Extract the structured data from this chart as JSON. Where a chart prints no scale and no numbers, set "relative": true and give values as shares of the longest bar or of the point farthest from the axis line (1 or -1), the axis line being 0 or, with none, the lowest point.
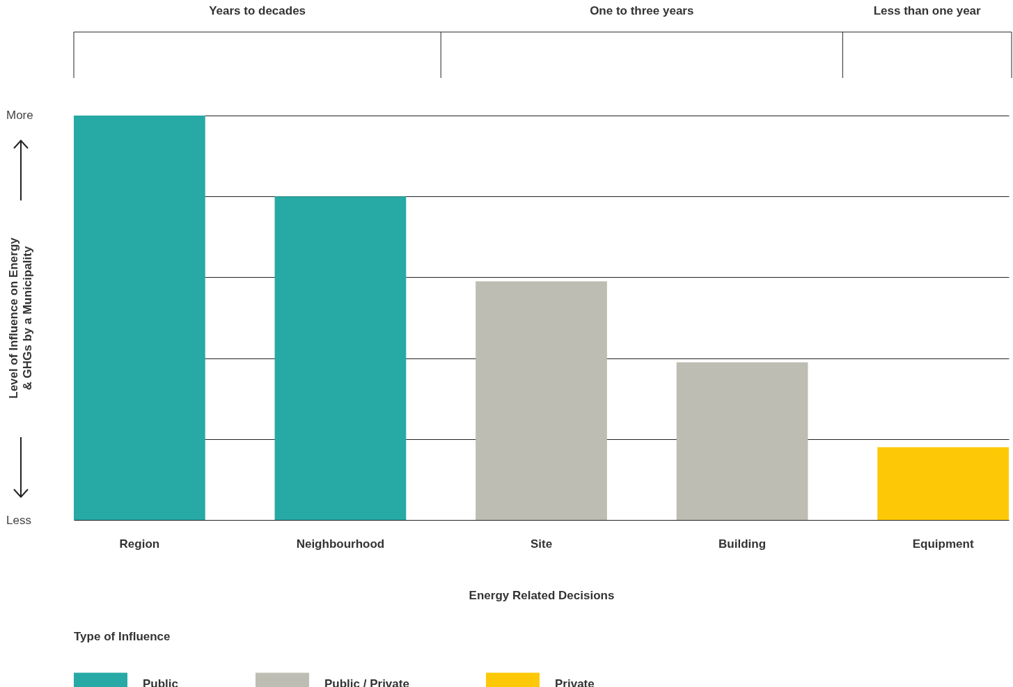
{
  "chart_data": {
    "type": "bar",
    "relative": true,
    "xlabel": "Energy Related Decisions",
    "ylabel": "Level of Influence on Energy\n& GHGs by a Municipality",
    "legend_title": "Type of Influence",
    "legend": "bottom left",
    "grid": "y",
    "categories": [
      "Region",
      "Neighbourhood",
      "Site",
      "Building",
      "Equipment"
    ],
    "series": [
      {
        "name": "Public",
        "color": "#27a9a5",
        "values": [
          1,
          0.8,
          null,
          null,
          null
        ]
      },
      {
        "name": "Public / Private",
        "color": "#bdbdb3",
        "values": [
          null,
          null,
          0.59,
          0.39,
          null
        ]
      },
      {
        "name": "Private",
        "color": "#fdc907",
        "values": [
          null,
          null,
          null,
          null,
          0.18
        ]
      }
    ],
    "annotations": [
      "Years to decades",
      "One to three years",
      "Less than one year",
      "More",
      "Less"
    ]
  }
}
